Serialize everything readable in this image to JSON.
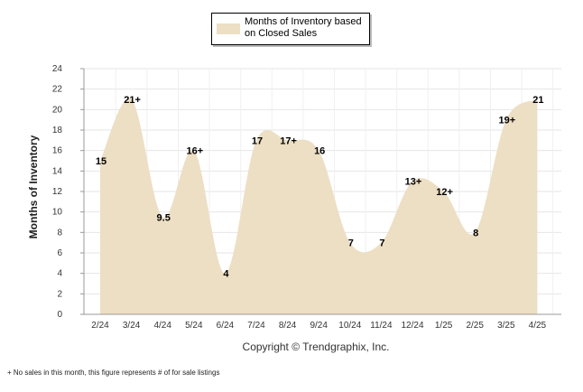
{
  "legend": {
    "label": "Months of Inventory based on Closed Sales",
    "swatch_color": "#eddfc4"
  },
  "copyright": "Copyright © Trendgraphix, Inc.",
  "footnote": "+ No sales in this month, this figure represents # of for sale listings",
  "chart_data": {
    "type": "area",
    "ylabel": "Months of Inventory",
    "xlabel": "",
    "ylim": [
      0,
      24
    ],
    "yticks": [
      0,
      2,
      4,
      6,
      8,
      10,
      12,
      14,
      16,
      18,
      20,
      22,
      24
    ],
    "grid": true,
    "legend_position": "top-center",
    "fill_color": "#eddfc4",
    "categories": [
      "2/24",
      "3/24",
      "4/24",
      "5/24",
      "6/24",
      "7/24",
      "8/24",
      "9/24",
      "10/24",
      "11/24",
      "12/24",
      "1/25",
      "2/25",
      "3/25",
      "4/25"
    ],
    "series": [
      {
        "name": "Months of Inventory based on Closed Sales",
        "values": [
          15,
          21,
          9.5,
          16,
          4,
          17,
          17,
          16,
          7,
          7,
          13,
          12,
          8,
          19,
          21
        ],
        "labels": [
          "15",
          "21+",
          "9.5",
          "16+",
          "4",
          "17",
          "17+",
          "16",
          "7",
          "7",
          "13+",
          "12+",
          "8",
          "19+",
          "21"
        ]
      }
    ]
  }
}
